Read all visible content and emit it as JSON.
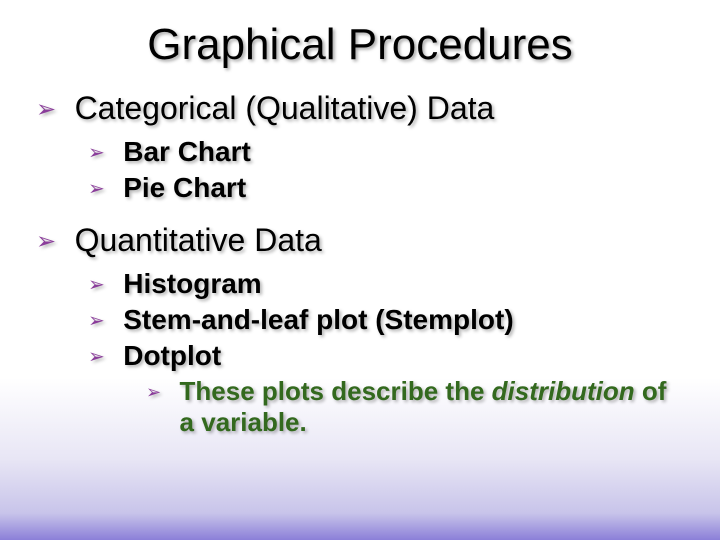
{
  "title": "Graphical Procedures",
  "bullet_glyph": "➢",
  "bullet_color": "#8a3d9a",
  "level3_color": "#33691e",
  "text_shadow": "2px 2px 3px rgba(0,0,0,0.3)",
  "section1": {
    "heading": "Categorical (Qualitative) Data",
    "items": {
      "a": "Bar Chart",
      "b": "Pie Chart"
    }
  },
  "section2": {
    "heading": "Quantitative Data",
    "items": {
      "a": "Histogram",
      "b": "Stem-and-leaf plot (Stemplot)",
      "c": "Dotplot",
      "c_sub_prefix": "These plots describe the ",
      "c_sub_italic": "distribution",
      "c_sub_suffix": " of a variable."
    }
  }
}
